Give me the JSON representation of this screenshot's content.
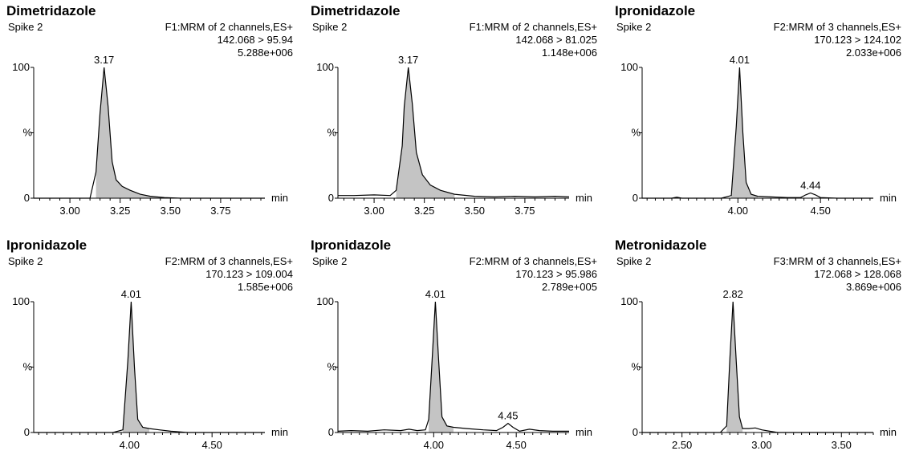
{
  "chart_data": [
    {
      "type": "line",
      "title": "Dimetridazole",
      "sample": "Spike 2",
      "channel": "F1:MRM of 2 channels,ES+",
      "transition": "142.068 > 95.94",
      "intensity": "5.288e+006",
      "xlabel": "min",
      "ylabel": "%",
      "xlim": [
        2.82,
        3.97
      ],
      "ylim": [
        0,
        100
      ],
      "xticks": [
        "3.00",
        "3.25",
        "3.50",
        "3.75"
      ],
      "xtick_values": [
        3.0,
        3.25,
        3.5,
        3.75
      ],
      "yticks": [
        "0",
        "100"
      ],
      "peak_labels": [
        {
          "label": "3.17",
          "x": 3.17,
          "y": 100
        }
      ],
      "x": [
        2.82,
        3.1,
        3.13,
        3.15,
        3.17,
        3.19,
        3.21,
        3.23,
        3.26,
        3.3,
        3.35,
        3.4,
        3.47,
        3.55,
        3.97
      ],
      "y": [
        0,
        0,
        20,
        65,
        100,
        70,
        28,
        14,
        9,
        6,
        3,
        1.5,
        0.5,
        0,
        0
      ],
      "shaded_range": [
        3.13,
        3.47
      ]
    },
    {
      "type": "line",
      "title": "Dimetridazole",
      "sample": "Spike 2",
      "channel": "F1:MRM of 2 channels,ES+",
      "transition": "142.068 > 81.025",
      "intensity": "1.148e+006",
      "xlabel": "min",
      "ylabel": "%",
      "xlim": [
        2.82,
        3.97
      ],
      "ylim": [
        0,
        100
      ],
      "xticks": [
        "3.00",
        "3.25",
        "3.50",
        "3.75"
      ],
      "xtick_values": [
        3.0,
        3.25,
        3.5,
        3.75
      ],
      "yticks": [
        "0",
        "100"
      ],
      "peak_labels": [
        {
          "label": "3.17",
          "x": 3.17,
          "y": 100
        }
      ],
      "x": [
        2.82,
        2.9,
        3.0,
        3.08,
        3.11,
        3.14,
        3.15,
        3.17,
        3.19,
        3.21,
        3.24,
        3.28,
        3.33,
        3.4,
        3.5,
        3.6,
        3.7,
        3.8,
        3.9,
        3.97
      ],
      "y": [
        2,
        2,
        2.5,
        2,
        6,
        40,
        70,
        100,
        72,
        35,
        18,
        10,
        6,
        3,
        1.5,
        1,
        1.5,
        1,
        1.5,
        1
      ],
      "shaded_range": [
        3.11,
        3.4
      ]
    },
    {
      "type": "line",
      "title": "Ipronidazole",
      "sample": "Spike 2",
      "channel": "F2:MRM of 3 channels,ES+",
      "transition": "170.123 > 124.102",
      "intensity": "2.033e+006",
      "xlabel": "min",
      "ylabel": "%",
      "xlim": [
        3.42,
        4.82
      ],
      "ylim": [
        0,
        100
      ],
      "xticks": [
        "4.00",
        "4.50"
      ],
      "xtick_values": [
        4.0,
        4.5
      ],
      "yticks": [
        "0",
        "100"
      ],
      "peak_labels": [
        {
          "label": "4.01",
          "x": 4.01,
          "y": 100
        },
        {
          "label": "4.44",
          "x": 4.44,
          "y": 4
        }
      ],
      "x": [
        3.42,
        3.6,
        3.63,
        3.66,
        3.9,
        3.96,
        3.99,
        4.01,
        4.03,
        4.05,
        4.08,
        4.12,
        4.2,
        4.3,
        4.38,
        4.41,
        4.44,
        4.47,
        4.5,
        4.6,
        4.82
      ],
      "y": [
        0,
        0,
        0.8,
        0,
        0,
        2,
        55,
        100,
        50,
        12,
        3,
        1.5,
        1,
        0.5,
        0.5,
        2.5,
        4,
        2.5,
        0.5,
        0,
        0
      ],
      "shaded_range": [
        3.96,
        4.12
      ]
    },
    {
      "type": "line",
      "title": "Ipronidazole",
      "sample": "Spike 2",
      "channel": "F2:MRM of 3 channels,ES+",
      "transition": "170.123 > 109.004",
      "intensity": "1.585e+006",
      "xlabel": "min",
      "ylabel": "%",
      "xlim": [
        3.42,
        4.82
      ],
      "ylim": [
        0,
        100
      ],
      "xticks": [
        "4.00",
        "4.50"
      ],
      "xtick_values": [
        4.0,
        4.5
      ],
      "yticks": [
        "0",
        "100"
      ],
      "peak_labels": [
        {
          "label": "4.01",
          "x": 4.01,
          "y": 100
        }
      ],
      "x": [
        3.42,
        3.9,
        3.96,
        3.99,
        4.01,
        4.03,
        4.05,
        4.08,
        4.12,
        4.18,
        4.25,
        4.35,
        4.82
      ],
      "y": [
        0,
        0,
        2,
        55,
        100,
        50,
        10,
        4,
        3,
        2,
        1,
        0,
        0
      ],
      "shaded_range": [
        3.96,
        4.12
      ]
    },
    {
      "type": "line",
      "title": "Ipronidazole",
      "sample": "Spike 2",
      "channel": "F2:MRM of 3 channels,ES+",
      "transition": "170.123 > 95.986",
      "intensity": "2.789e+005",
      "xlabel": "min",
      "ylabel": "%",
      "xlim": [
        3.42,
        4.82
      ],
      "ylim": [
        0,
        100
      ],
      "xticks": [
        "4.00",
        "4.50"
      ],
      "xtick_values": [
        4.0,
        4.5
      ],
      "yticks": [
        "0",
        "100"
      ],
      "peak_labels": [
        {
          "label": "4.01",
          "x": 4.01,
          "y": 100
        },
        {
          "label": "4.45",
          "x": 4.45,
          "y": 7
        }
      ],
      "x": [
        3.42,
        3.5,
        3.6,
        3.7,
        3.8,
        3.85,
        3.9,
        3.95,
        3.97,
        3.99,
        4.01,
        4.03,
        4.05,
        4.08,
        4.12,
        4.2,
        4.3,
        4.38,
        4.42,
        4.45,
        4.48,
        4.52,
        4.58,
        4.64,
        4.72,
        4.82
      ],
      "y": [
        1,
        1.5,
        1,
        2,
        1.5,
        2.5,
        1.5,
        2,
        10,
        55,
        100,
        55,
        12,
        5,
        4,
        3,
        2,
        1.5,
        4,
        7,
        4,
        1,
        2.5,
        1.5,
        1,
        1
      ],
      "shaded_range": [
        3.97,
        4.12
      ]
    },
    {
      "type": "line",
      "title": "Metronidazole",
      "sample": "Spike 2",
      "channel": "F3:MRM of 3 channels,ES+",
      "transition": "172.068 > 128.068",
      "intensity": "3.869e+006",
      "xlabel": "min",
      "ylabel": "%",
      "xlim": [
        2.25,
        3.7
      ],
      "ylim": [
        0,
        100
      ],
      "xticks": [
        "2.50",
        "3.00",
        "3.50"
      ],
      "xtick_values": [
        2.5,
        3.0,
        3.5
      ],
      "yticks": [
        "0",
        "100"
      ],
      "peak_labels": [
        {
          "label": "2.82",
          "x": 2.82,
          "y": 100
        }
      ],
      "x": [
        2.25,
        2.74,
        2.78,
        2.8,
        2.82,
        2.84,
        2.86,
        2.88,
        2.92,
        2.96,
        3.0,
        3.05,
        3.1,
        3.7
      ],
      "y": [
        0,
        0,
        5,
        55,
        100,
        55,
        12,
        3,
        3,
        3.5,
        2,
        1,
        0,
        0
      ],
      "shaded_range": [
        2.78,
        2.88
      ]
    }
  ]
}
